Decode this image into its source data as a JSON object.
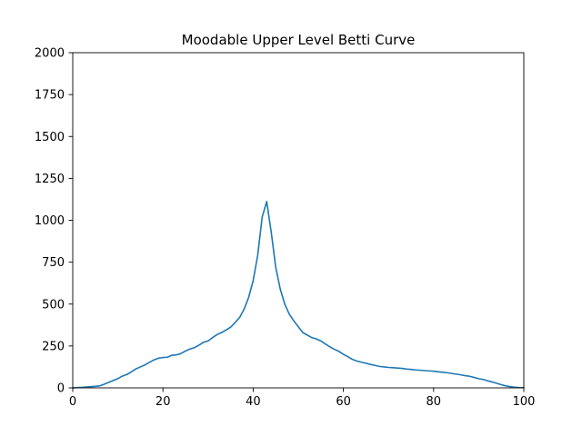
{
  "chart_data": {
    "type": "line",
    "title": "Moodable Upper Level Betti Curve",
    "xlabel": "",
    "ylabel": "",
    "xlim": [
      0,
      100
    ],
    "ylim": [
      0,
      2000
    ],
    "grid": false,
    "x_ticks": [
      "0",
      "20",
      "40",
      "60",
      "80",
      "100"
    ],
    "y_ticks": [
      "0",
      "250",
      "500",
      "750",
      "1000",
      "1250",
      "1500",
      "1750",
      "2000"
    ],
    "line_color": "#1f77b4",
    "series": [
      {
        "x": [
          0,
          1,
          2,
          3,
          4,
          5,
          6,
          7,
          8,
          9,
          10,
          11,
          12,
          13,
          14,
          15,
          16,
          17,
          18,
          19,
          20,
          21,
          22,
          23,
          24,
          25,
          26,
          27,
          28,
          29,
          30,
          31,
          32,
          33,
          34,
          35,
          36,
          37,
          38,
          39,
          40,
          41,
          42,
          43,
          44,
          45,
          46,
          47,
          48,
          49,
          50,
          51,
          52,
          53,
          54,
          55,
          56,
          57,
          58,
          59,
          60,
          61,
          62,
          63,
          64,
          65,
          66,
          67,
          68,
          69,
          70,
          71,
          72,
          73,
          74,
          75,
          76,
          77,
          78,
          79,
          80,
          81,
          82,
          83,
          84,
          85,
          86,
          87,
          88,
          89,
          90,
          91,
          92,
          93,
          94,
          95,
          96,
          97,
          98,
          99,
          100
        ],
        "values": [
          0,
          2,
          3,
          5,
          7,
          9,
          12,
          22,
          33,
          44,
          55,
          70,
          80,
          95,
          113,
          125,
          137,
          152,
          167,
          177,
          181,
          183,
          195,
          197,
          205,
          220,
          232,
          240,
          255,
          272,
          280,
          300,
          318,
          330,
          345,
          362,
          390,
          420,
          470,
          540,
          640,
          790,
          1020,
          1112,
          930,
          720,
          590,
          500,
          440,
          400,
          365,
          330,
          315,
          300,
          292,
          280,
          262,
          245,
          230,
          218,
          200,
          186,
          170,
          160,
          153,
          147,
          140,
          134,
          128,
          125,
          122,
          120,
          118,
          116,
          112,
          110,
          107,
          105,
          103,
          101,
          99,
          96,
          93,
          90,
          86,
          82,
          78,
          73,
          69,
          62,
          55,
          50,
          42,
          35,
          27,
          19,
          12,
          7,
          4,
          2,
          1
        ]
      }
    ]
  }
}
